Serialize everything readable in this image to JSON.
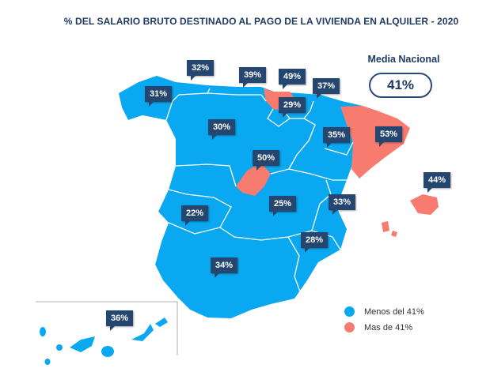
{
  "title": "% DEL SALARIO BRUTO DESTINADO AL PAGO DE LA VIVIENDA EN ALQUILER - 2020",
  "national": {
    "label": "Media Nacional",
    "value": "41%"
  },
  "colors": {
    "below": "#0aa8f0",
    "above": "#f77b6e",
    "callout": "#24466f",
    "text": "#1f3b63"
  },
  "regions": [
    {
      "name": "Galicia",
      "value": "31%",
      "status": "below"
    },
    {
      "name": "Asturias",
      "value": "32%",
      "status": "below"
    },
    {
      "name": "Cantabria",
      "value": "39%",
      "status": "below"
    },
    {
      "name": "País Vasco",
      "value": "49%",
      "status": "above"
    },
    {
      "name": "Navarra",
      "value": "37%",
      "status": "below"
    },
    {
      "name": "La Rioja",
      "value": "29%",
      "status": "below"
    },
    {
      "name": "Castilla y León",
      "value": "30%",
      "status": "below"
    },
    {
      "name": "Aragón",
      "value": "35%",
      "status": "below"
    },
    {
      "name": "Cataluña",
      "value": "53%",
      "status": "above"
    },
    {
      "name": "Madrid",
      "value": "50%",
      "status": "above"
    },
    {
      "name": "Baleares",
      "value": "44%",
      "status": "above"
    },
    {
      "name": "Extremadura",
      "value": "22%",
      "status": "below"
    },
    {
      "name": "Castilla-La Mancha",
      "value": "25%",
      "status": "below"
    },
    {
      "name": "C. Valenciana",
      "value": "33%",
      "status": "below"
    },
    {
      "name": "Murcia",
      "value": "28%",
      "status": "below"
    },
    {
      "name": "Andalucía",
      "value": "34%",
      "status": "below"
    },
    {
      "name": "Canarias",
      "value": "36%",
      "status": "below"
    }
  ],
  "legend": [
    {
      "label": "Menos del 41%",
      "color": "#0aa8f0"
    },
    {
      "label": "Mas de 41%",
      "color": "#f77b6e"
    }
  ]
}
